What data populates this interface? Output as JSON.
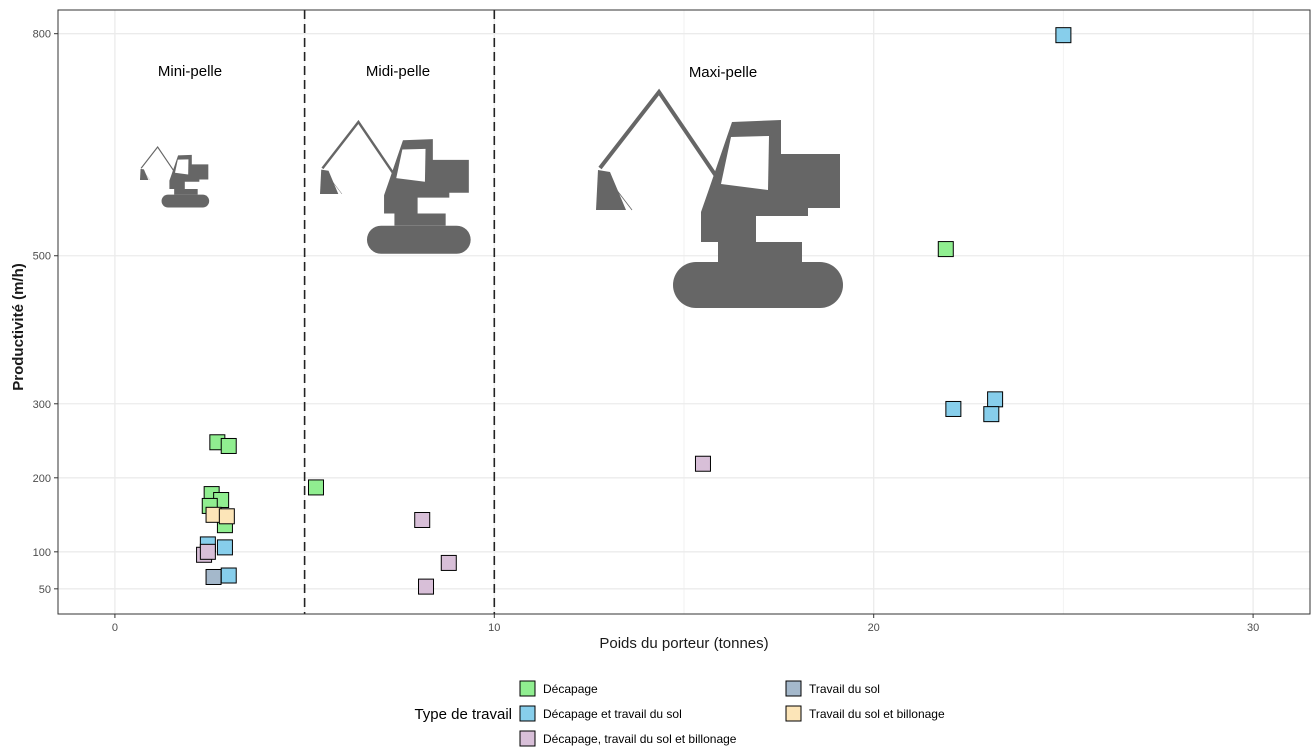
{
  "chart_data": {
    "type": "scatter",
    "xlabel": "Poids du porteur (tonnes)",
    "ylabel": "Productivité (m/h)",
    "xlim": [
      -1.5,
      31.5
    ],
    "ylim": [
      16,
      832
    ],
    "x_ticks": [
      0,
      10,
      20,
      30
    ],
    "y_ticks": [
      50,
      100,
      200,
      300,
      500,
      800
    ],
    "grid": true,
    "zones": [
      {
        "label": "Mini-pelle",
        "x_from": -1.5,
        "x_to": 5
      },
      {
        "label": "Midi-pelle",
        "x_from": 5,
        "x_to": 10
      },
      {
        "label": "Maxi-pelle",
        "x_from": 10,
        "x_to": 31.5
      }
    ],
    "vlines": [
      5,
      10
    ],
    "legend": {
      "title": "Type de travail",
      "position": "bottom"
    },
    "series": [
      {
        "name": "Décapage",
        "color": "#90EE90",
        "points": [
          {
            "x": 2.7,
            "y": 248
          },
          {
            "x": 3.0,
            "y": 243
          },
          {
            "x": 2.55,
            "y": 178
          },
          {
            "x": 2.8,
            "y": 170
          },
          {
            "x": 2.5,
            "y": 162
          },
          {
            "x": 2.9,
            "y": 136
          },
          {
            "x": 5.3,
            "y": 187
          },
          {
            "x": 21.9,
            "y": 509
          }
        ]
      },
      {
        "name": "Décapage et travail du sol",
        "color": "#87CEEB",
        "points": [
          {
            "x": 2.45,
            "y": 110
          },
          {
            "x": 2.9,
            "y": 106
          },
          {
            "x": 3.0,
            "y": 68
          },
          {
            "x": 25.0,
            "y": 798
          },
          {
            "x": 23.2,
            "y": 306
          },
          {
            "x": 22.1,
            "y": 293
          },
          {
            "x": 23.1,
            "y": 286
          }
        ]
      },
      {
        "name": "Décapage, travail du sol et billonage",
        "color": "#D8BFD8",
        "points": [
          {
            "x": 2.35,
            "y": 96
          },
          {
            "x": 2.45,
            "y": 100
          },
          {
            "x": 8.1,
            "y": 143
          },
          {
            "x": 8.8,
            "y": 85
          },
          {
            "x": 8.2,
            "y": 53
          },
          {
            "x": 15.5,
            "y": 219
          }
        ]
      },
      {
        "name": "Travail du sol",
        "color": "#A4B8CB",
        "points": [
          {
            "x": 2.6,
            "y": 66
          }
        ]
      },
      {
        "name": "Travail du sol et billonage",
        "color": "#FCE5B8",
        "points": [
          {
            "x": 2.6,
            "y": 150
          },
          {
            "x": 2.95,
            "y": 148
          }
        ]
      }
    ]
  },
  "icons": [
    {
      "name": "mini-excavator-icon",
      "zone": "Mini-pelle"
    },
    {
      "name": "midi-excavator-icon",
      "zone": "Midi-pelle"
    },
    {
      "name": "maxi-excavator-icon",
      "zone": "Maxi-pelle"
    }
  ]
}
